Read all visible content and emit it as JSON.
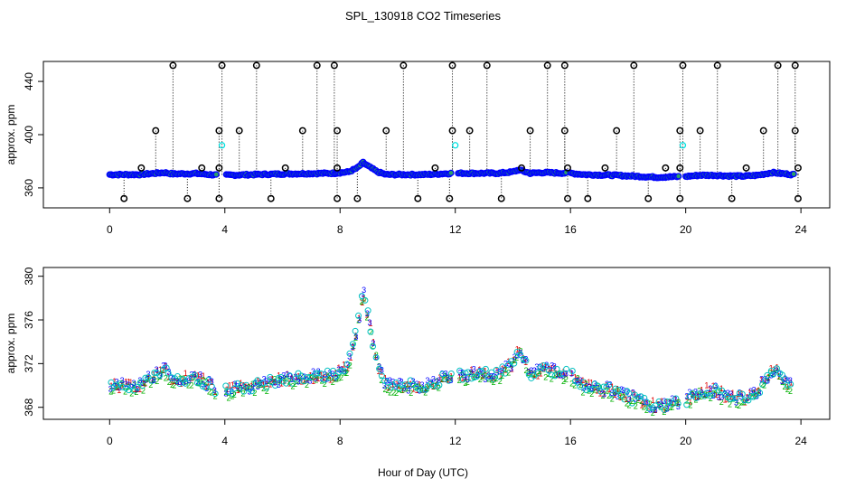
{
  "chart_data": {
    "type": "scatter",
    "title": "SPL_130918  CO2 Timeseries",
    "xlabel": "Hour of Day (UTC)",
    "xlim": [
      -2.3,
      25
    ],
    "x_ticks": [
      0,
      4,
      8,
      12,
      16,
      20,
      24
    ],
    "x_tick_labels": [
      "0",
      "4",
      "8",
      "12",
      "16",
      "20",
      "24"
    ],
    "grid": false,
    "panels": [
      {
        "name": "top",
        "ylabel": "approx. ppm",
        "ylim": [
          345,
          455
        ],
        "y_ticks": [
          360,
          400,
          440
        ],
        "y_tick_labels": [
          "360",
          "400",
          "440"
        ],
        "series": [
          {
            "name": "blue",
            "color": "#0000ff",
            "marker": "circle",
            "knots": [
              [
                0,
                370
              ],
              [
                1,
                370
              ],
              [
                1.9,
                371.5
              ],
              [
                2.2,
                370.5
              ],
              [
                3,
                370.8
              ],
              [
                3.8,
                369.5
              ],
              [
                4,
                369.5
              ],
              [
                5,
                370
              ],
              [
                6,
                370.5
              ],
              [
                7,
                370.8
              ],
              [
                7.8,
                371
              ],
              [
                8.3,
                372
              ],
              [
                8.6,
                375
              ],
              [
                8.8,
                379
              ],
              [
                9.0,
                376
              ],
              [
                9.3,
                372
              ],
              [
                9.6,
                370
              ],
              [
                11,
                370
              ],
              [
                11.9,
                371
              ],
              [
                12,
                371
              ],
              [
                13,
                371
              ],
              [
                13.5,
                371
              ],
              [
                14,
                372
              ],
              [
                14.2,
                373.5
              ],
              [
                14.6,
                371
              ],
              [
                15,
                371.5
              ],
              [
                16,
                371
              ],
              [
                16.5,
                370
              ],
              [
                17.5,
                369.5
              ],
              [
                18,
                369
              ],
              [
                18.5,
                368.5
              ],
              [
                19,
                368
              ],
              [
                19.8,
                368.5
              ],
              [
                20,
                368.6
              ],
              [
                20.5,
                369.5
              ],
              [
                21,
                369.5
              ],
              [
                21.5,
                369
              ],
              [
                22,
                368.8
              ],
              [
                22.5,
                369.5
              ],
              [
                23,
                371.5
              ],
              [
                23.7,
                370
              ]
            ]
          },
          {
            "name": "cyan",
            "color": "#00e0e0",
            "marker": "circle",
            "extra_points": [
              [
                3.9,
                392
              ],
              [
                12.0,
                392
              ],
              [
                19.9,
                392
              ]
            ]
          },
          {
            "name": "outliers",
            "color": "#000000",
            "marker": "circle-vertical-drop",
            "high_hours": [
              2.2,
              3.9,
              5.1,
              7.2,
              7.8,
              10.2,
              11.9,
              13.1,
              15.2,
              15.8,
              18.2,
              19.9,
              21.1,
              23.2,
              23.8
            ],
            "high_value": 452,
            "mid_hours": [
              1.6,
              3.8,
              4.5,
              6.7,
              7.9,
              9.6,
              11.9,
              12.5,
              14.6,
              15.8,
              17.6,
              19.8,
              20.5,
              22.7,
              23.8
            ],
            "mid_value": 403,
            "low_hours": [
              1.1,
              3.2,
              3.8,
              6.1,
              7.9,
              11.3,
              14.3,
              15.9,
              17.2,
              19.3,
              19.8,
              22.1,
              23.9
            ],
            "low_value": 375,
            "bottom_hours": [
              0.5,
              2.7,
              3.8,
              5.6,
              7.9,
              8.6,
              10.7,
              11.8,
              13.6,
              15.9,
              16.6,
              18.7,
              19.8,
              21.6,
              23.9
            ],
            "bottom_value": 352
          }
        ]
      },
      {
        "name": "bottom",
        "ylabel": "approx. ppm",
        "ylim": [
          366.9,
          380.8
        ],
        "y_ticks": [
          368,
          372,
          376,
          380
        ],
        "y_tick_labels": [
          "368",
          "372",
          "376",
          "380"
        ],
        "series": [
          {
            "name": "1",
            "color": "#e00000",
            "marker": "char",
            "label_char": "1"
          },
          {
            "name": "2",
            "color": "#00b000",
            "marker": "char",
            "label_char": "2"
          },
          {
            "name": "3",
            "color": "#0000ff",
            "marker": "char",
            "label_char": "3"
          },
          {
            "name": "4",
            "color": "#00c0c0",
            "marker": "circle",
            "label_char": "o"
          }
        ]
      }
    ],
    "gaps": [
      [
        3.7,
        4.0
      ],
      [
        11.9,
        12.1
      ],
      [
        15.9,
        16.0
      ],
      [
        19.8,
        20.0
      ]
    ]
  }
}
